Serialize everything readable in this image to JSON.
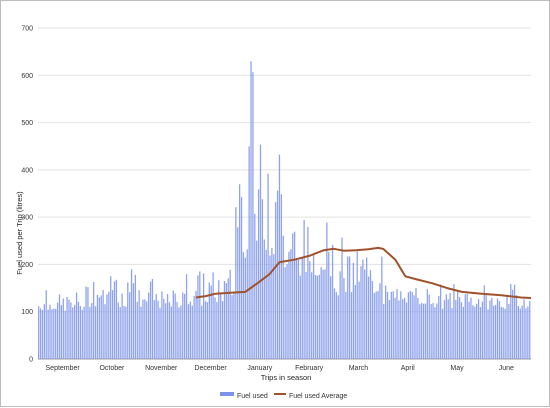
{
  "chart_data": {
    "type": "bar",
    "title": "",
    "xlabel": "Trips in season",
    "ylabel": "Fuel used per Trip (litres)",
    "ylim": [
      0,
      700
    ],
    "yticks": [
      0,
      100,
      200,
      300,
      400,
      500,
      600,
      700
    ],
    "grid": "horizontal",
    "legend_position": "bottom",
    "months": [
      "September",
      "October",
      "November",
      "December",
      "January",
      "February",
      "March",
      "April",
      "May",
      "June"
    ],
    "series": [
      {
        "name": "Fuel used",
        "type": "bar",
        "color": "#7b93ea",
        "profile": [
          {
            "month": "September",
            "approx_range": [
              95,
              160
            ]
          },
          {
            "month": "October",
            "approx_range": [
              100,
              195
            ]
          },
          {
            "month": "November",
            "approx_range": [
              100,
              170
            ]
          },
          {
            "month": "December",
            "approx_range": [
              100,
              225
            ]
          },
          {
            "month": "January",
            "approx_range": [
              170,
              665
            ]
          },
          {
            "month": "February",
            "approx_range": [
              160,
              305
            ]
          },
          {
            "month": "March",
            "approx_range": [
              120,
              275
            ]
          },
          {
            "month": "April",
            "approx_range": [
              110,
              165
            ]
          },
          {
            "month": "May",
            "approx_range": [
              100,
              165
            ]
          },
          {
            "month": "June",
            "approx_range": [
              100,
              160
            ]
          }
        ]
      },
      {
        "name": "Fuel used Average",
        "type": "line",
        "color": "#a0522d",
        "points": [
          {
            "month_pos": 3.2,
            "value": 130
          },
          {
            "month_pos": 3.4,
            "value": 133
          },
          {
            "month_pos": 3.6,
            "value": 138
          },
          {
            "month_pos": 3.9,
            "value": 140
          },
          {
            "month_pos": 4.2,
            "value": 142
          },
          {
            "month_pos": 4.45,
            "value": 160
          },
          {
            "month_pos": 4.7,
            "value": 180
          },
          {
            "month_pos": 4.9,
            "value": 205
          },
          {
            "month_pos": 5.2,
            "value": 210
          },
          {
            "month_pos": 5.5,
            "value": 218
          },
          {
            "month_pos": 5.8,
            "value": 230
          },
          {
            "month_pos": 6.0,
            "value": 233
          },
          {
            "month_pos": 6.2,
            "value": 229
          },
          {
            "month_pos": 6.45,
            "value": 230
          },
          {
            "month_pos": 6.7,
            "value": 232
          },
          {
            "month_pos": 6.9,
            "value": 235
          },
          {
            "month_pos": 7.0,
            "value": 233
          },
          {
            "month_pos": 7.25,
            "value": 210
          },
          {
            "month_pos": 7.45,
            "value": 175
          },
          {
            "month_pos": 7.7,
            "value": 168
          },
          {
            "month_pos": 8.0,
            "value": 160
          },
          {
            "month_pos": 8.3,
            "value": 150
          },
          {
            "month_pos": 8.6,
            "value": 142
          },
          {
            "month_pos": 9.0,
            "value": 138
          },
          {
            "month_pos": 9.4,
            "value": 135
          },
          {
            "month_pos": 9.8,
            "value": 130
          },
          {
            "month_pos": 10.0,
            "value": 129
          }
        ]
      }
    ]
  }
}
